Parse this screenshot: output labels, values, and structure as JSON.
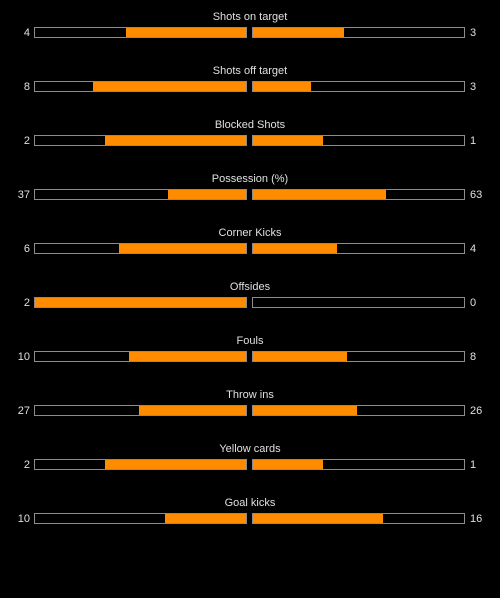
{
  "colors": {
    "background": "#000000",
    "bar_fill": "#ff8c00",
    "bar_border": "#8c8c8c",
    "text": "#e0e0e0"
  },
  "stats": [
    {
      "label": "Shots on target",
      "home": "4",
      "away": "3",
      "home_fraction": 0.571,
      "away_fraction": 0.429
    },
    {
      "label": "Shots off target",
      "home": "8",
      "away": "3",
      "home_fraction": 0.727,
      "away_fraction": 0.273
    },
    {
      "label": "Blocked Shots",
      "home": "2",
      "away": "1",
      "home_fraction": 0.667,
      "away_fraction": 0.333
    },
    {
      "label": "Possession (%)",
      "home": "37",
      "away": "63",
      "home_fraction": 0.37,
      "away_fraction": 0.63
    },
    {
      "label": "Corner Kicks",
      "home": "6",
      "away": "4",
      "home_fraction": 0.6,
      "away_fraction": 0.4
    },
    {
      "label": "Offsides",
      "home": "2",
      "away": "0",
      "home_fraction": 1.0,
      "away_fraction": 0.0
    },
    {
      "label": "Fouls",
      "home": "10",
      "away": "8",
      "home_fraction": 0.556,
      "away_fraction": 0.444
    },
    {
      "label": "Throw ins",
      "home": "27",
      "away": "26",
      "home_fraction": 0.509,
      "away_fraction": 0.491
    },
    {
      "label": "Yellow cards",
      "home": "2",
      "away": "1",
      "home_fraction": 0.667,
      "away_fraction": 0.333
    },
    {
      "label": "Goal kicks",
      "home": "10",
      "away": "16",
      "home_fraction": 0.385,
      "away_fraction": 0.615
    }
  ]
}
